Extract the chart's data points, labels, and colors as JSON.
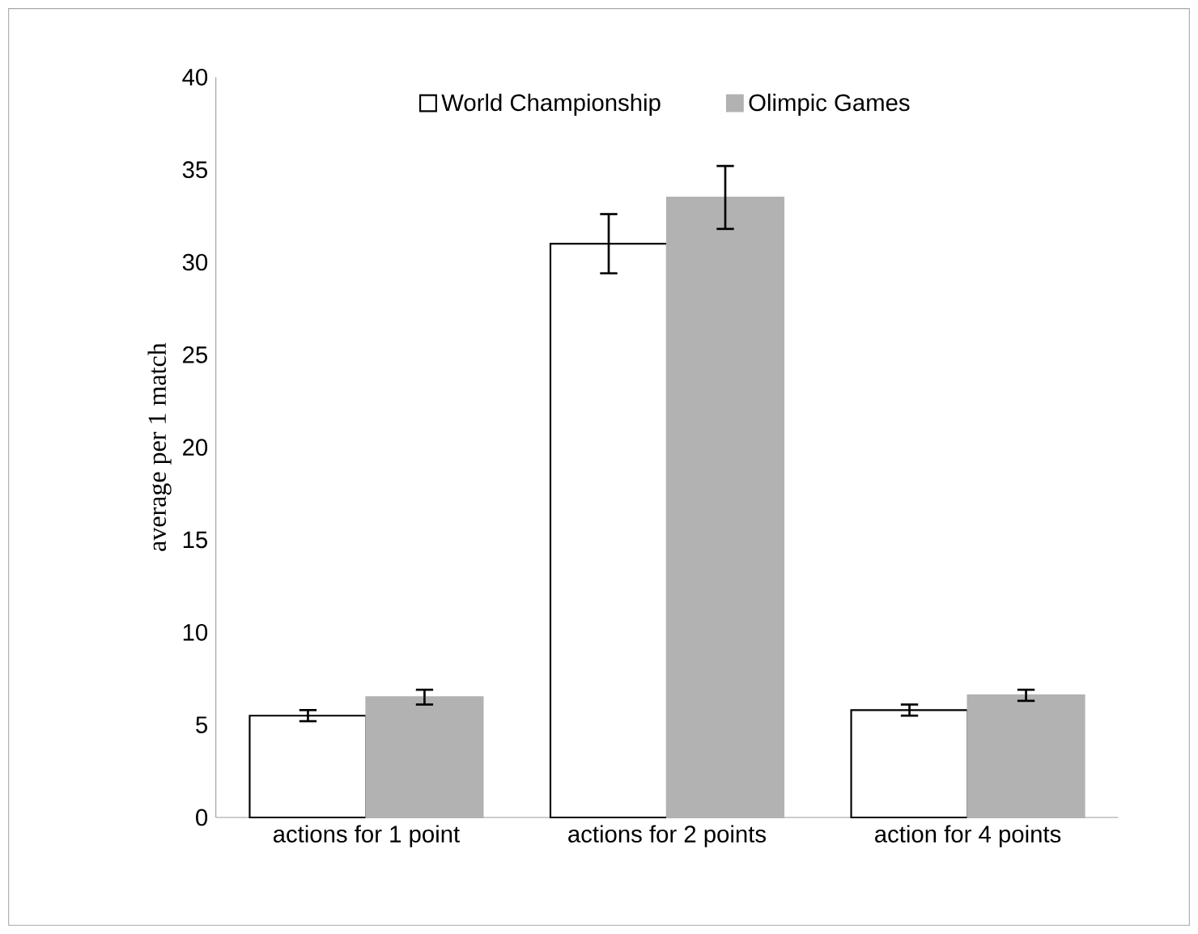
{
  "chart_data": {
    "type": "bar",
    "ylabel": "average per 1 match",
    "categories": [
      "actions for 1 point",
      "actions for 2 points",
      "action for 4 points"
    ],
    "series": [
      {
        "name": "World Championship",
        "color": "#ffffff",
        "values": [
          5.5,
          31,
          5.8
        ],
        "errors": [
          0.3,
          1.6,
          0.3
        ]
      },
      {
        "name": "Olimpic Games",
        "color": "#b2b2b2",
        "values": [
          6.5,
          33.5,
          6.6
        ],
        "errors": [
          0.4,
          1.7,
          0.3
        ]
      }
    ],
    "ylim": [
      0,
      40
    ],
    "yticks": [
      0,
      5,
      10,
      15,
      20,
      25,
      30,
      35,
      40
    ],
    "grid": false,
    "legend": "top"
  }
}
